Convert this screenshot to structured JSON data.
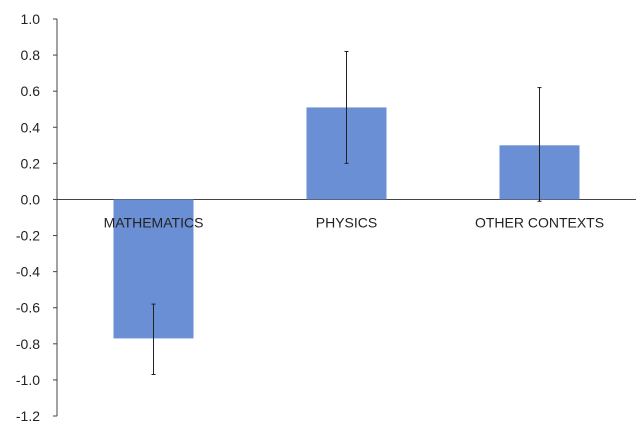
{
  "colors": {
    "bar": "#6a8fd5",
    "axis": "#444444",
    "error_bar": "#222222",
    "background": "#ffffff"
  },
  "chart_data": {
    "type": "bar",
    "categories": [
      "MATHEMATICS",
      "PHYSICS",
      "OTHER CONTEXTS"
    ],
    "values": [
      -0.77,
      0.51,
      0.3
    ],
    "error_bars": [
      {
        "low": -0.97,
        "high": -0.58
      },
      {
        "low": 0.2,
        "high": 0.82
      },
      {
        "low": -0.01,
        "high": 0.62
      }
    ],
    "title": "",
    "xlabel": "",
    "ylabel": "",
    "ylim": [
      -1.2,
      1.0
    ],
    "yticks": [
      1.0,
      0.8,
      0.6,
      0.4,
      0.2,
      0.0,
      -0.2,
      -0.4,
      -0.6,
      -0.8,
      -1.0,
      -1.2
    ],
    "ytick_labels": [
      "1.0",
      "0.8",
      "0.6",
      "0.4",
      "0.2",
      "0.0",
      "-0.2",
      "-0.4",
      "-0.6",
      "-0.8",
      "-1.0",
      "-1.2"
    ],
    "grid": false,
    "legend": "none"
  }
}
